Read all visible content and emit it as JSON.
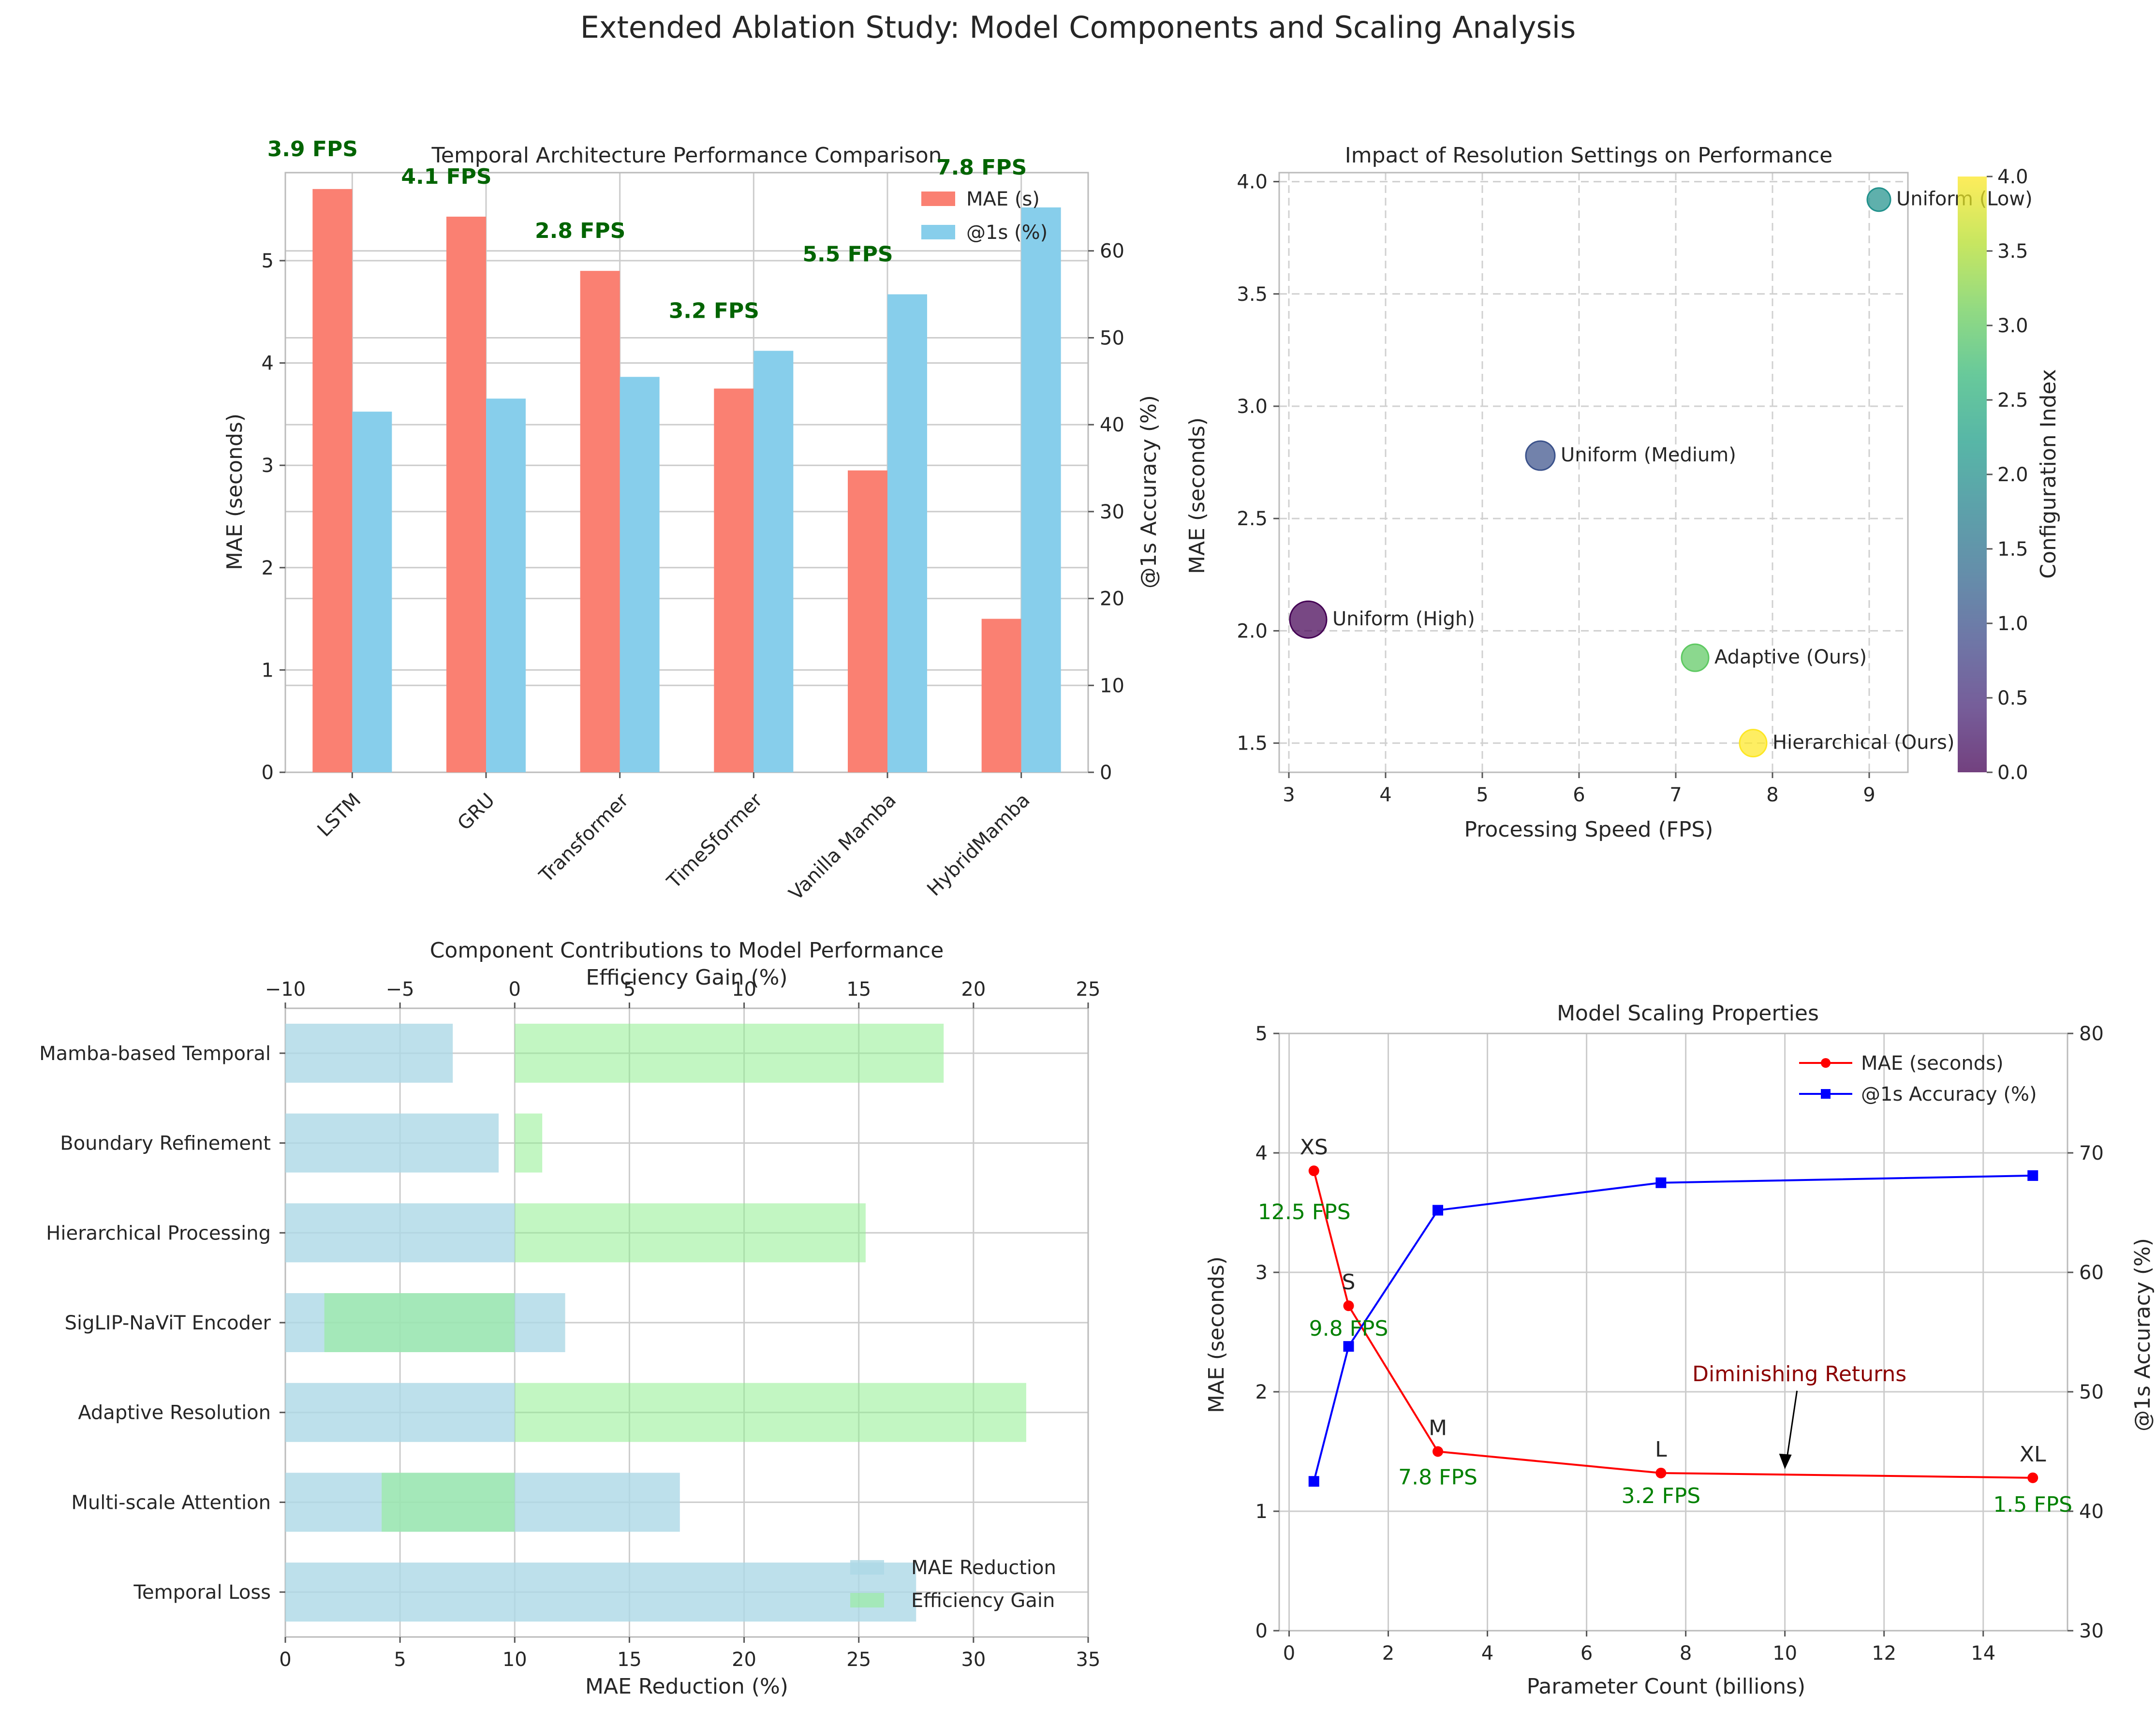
{
  "figure": {
    "title": "Extended Ablation Study: Model Components and Scaling Analysis"
  },
  "colors": {
    "mae_bar": "#fa8072",
    "acc_bar": "#87ceeb",
    "fps_text": "#006400",
    "mae_reduction": "#add8e6",
    "efficiency_gain": "#90ee90",
    "line_mae": "#ff0000",
    "line_acc": "#0000ff",
    "fps_green": "#008000",
    "diminishing": "#8b0000"
  },
  "chart_data": [
    {
      "type": "bar",
      "title": "Temporal Architecture Performance Comparison",
      "categories": [
        "LSTM",
        "GRU",
        "Transformer",
        "TimeSformer",
        "Vanilla Mamba",
        "HybridMamba"
      ],
      "series": [
        {
          "name": "MAE (s)",
          "axis": "left",
          "values": [
            5.7,
            5.43,
            4.9,
            3.75,
            2.95,
            1.5
          ]
        },
        {
          "name": "@1s (%)",
          "axis": "right",
          "values": [
            41.5,
            43.0,
            45.5,
            48.5,
            55.0,
            65.0
          ]
        }
      ],
      "fps_labels": [
        "3.9 FPS",
        "4.1 FPS",
        "2.8 FPS",
        "3.2 FPS",
        "5.5 FPS",
        "7.8 FPS"
      ],
      "ylabel": "MAE (seconds)",
      "ylabel_right": "@1s Accuracy (%)",
      "ylim": [
        0,
        5.86
      ],
      "ylim_right": [
        0,
        69
      ],
      "yticks": [
        "0",
        "1",
        "2",
        "3",
        "4",
        "5"
      ],
      "yticks_right": [
        "0",
        "10",
        "20",
        "30",
        "40",
        "50",
        "60"
      ],
      "legend": "top-right"
    },
    {
      "type": "scatter",
      "title": "Impact of Resolution Settings on Performance",
      "xlabel": "Processing Speed (FPS)",
      "ylabel": "MAE (seconds)",
      "xlim": [
        2.9,
        9.4
      ],
      "ylim": [
        1.37,
        4.04
      ],
      "xticks": [
        "3",
        "4",
        "5",
        "6",
        "7",
        "8",
        "9"
      ],
      "yticks": [
        "1.5",
        "2.0",
        "2.5",
        "3.0",
        "3.5",
        "4.0"
      ],
      "points": [
        {
          "label": "Uniform (High)",
          "x": 3.2,
          "y": 2.05,
          "config": 0,
          "color": "#440154"
        },
        {
          "label": "Uniform (Medium)",
          "x": 5.6,
          "y": 2.78,
          "config": 1,
          "color": "#3b528b"
        },
        {
          "label": "Uniform (Low)",
          "x": 9.1,
          "y": 3.92,
          "config": 2,
          "color": "#21918c"
        },
        {
          "label": "Adaptive (Ours)",
          "x": 7.2,
          "y": 1.88,
          "config": 3,
          "color": "#5ec962"
        },
        {
          "label": "Hierarchical (Ours)",
          "x": 7.8,
          "y": 1.5,
          "config": 4,
          "color": "#fde725"
        }
      ],
      "colorbar": {
        "label": "Configuration Index",
        "range": [
          0,
          4
        ],
        "ticks": [
          "0.0",
          "0.5",
          "1.0",
          "1.5",
          "2.0",
          "2.5",
          "3.0",
          "3.5",
          "4.0"
        ]
      }
    },
    {
      "type": "bar",
      "orientation": "horizontal",
      "title": "Component Contributions to Model Performance",
      "categories": [
        "Temporal Loss",
        "Multi-scale Attention",
        "Adaptive Resolution",
        "SigLIP-NaViT Encoder",
        "Hierarchical Processing",
        "Boundary Refinement",
        "Mamba-based Temporal"
      ],
      "series": [
        {
          "name": "MAE Reduction",
          "axis": "bottom",
          "values": [
            27.5,
            17.2,
            10.0,
            12.2,
            10.0,
            9.3,
            7.3
          ]
        },
        {
          "name": "Efficiency Gain",
          "axis": "top",
          "values": [
            0,
            -5.8,
            22.3,
            -8.3,
            15.3,
            1.2,
            18.7
          ]
        }
      ],
      "xlabel": "MAE Reduction (%)",
      "xlim": [
        0,
        35
      ],
      "xticks": [
        "0",
        "5",
        "10",
        "15",
        "20",
        "25",
        "30",
        "35"
      ],
      "xlabel_top": "Efficiency Gain (%)",
      "xlim_top": [
        -10,
        25
      ],
      "xticks_top": [
        "−10",
        "−5",
        "0",
        "5",
        "10",
        "15",
        "20",
        "25"
      ],
      "legend": "bottom-right"
    },
    {
      "type": "line",
      "title": "Model Scaling Properties",
      "xlabel": "Parameter Count (billions)",
      "ylabel": "MAE (seconds)",
      "ylabel_right": "@1s Accuracy (%)",
      "xlim": [
        -0.2,
        15.7
      ],
      "ylim": [
        0,
        5
      ],
      "ylim_right": [
        30,
        80
      ],
      "xticks": [
        "0",
        "2",
        "4",
        "6",
        "8",
        "10",
        "12",
        "14"
      ],
      "yticks": [
        "0",
        "1",
        "2",
        "3",
        "4",
        "5"
      ],
      "yticks_right": [
        "30",
        "40",
        "50",
        "60",
        "70",
        "80"
      ],
      "x": [
        0.5,
        1.2,
        3,
        7.5,
        15
      ],
      "sizes": [
        "XS",
        "S",
        "M",
        "L",
        "XL"
      ],
      "fps": [
        "12.5 FPS",
        "9.8 FPS",
        "7.8 FPS",
        "3.2 FPS",
        "1.5 FPS"
      ],
      "series": [
        {
          "name": "MAE (seconds)",
          "axis": "left",
          "values": [
            3.85,
            2.72,
            1.5,
            1.32,
            1.28
          ]
        },
        {
          "name": "@1s Accuracy (%)",
          "axis": "right",
          "values": [
            42.5,
            53.8,
            65.2,
            67.5,
            68.1
          ]
        }
      ],
      "annotation": "Diminishing Returns",
      "legend": "top-right"
    }
  ]
}
